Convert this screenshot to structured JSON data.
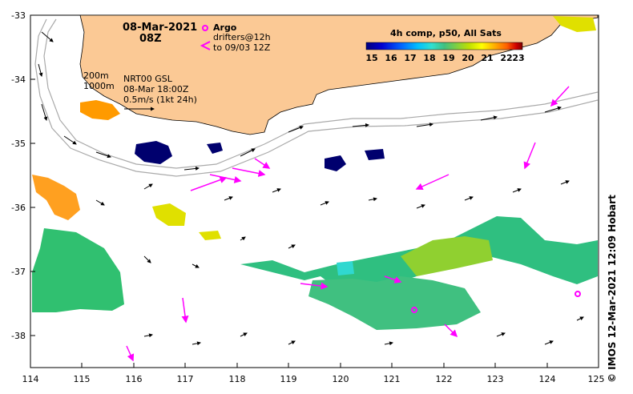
{
  "title": {
    "date": "08-Mar-2021",
    "time": "08Z"
  },
  "legend": {
    "argo_label": "Argo",
    "drifters_label": "drifters@12h",
    "drifters_to": "to 09/03 12Z",
    "argo_color": "#ff00ff",
    "drifter_color": "#ff00ff"
  },
  "depth_contours": {
    "label_200": "200m",
    "label_1000": "1000m",
    "contour_color": "#aaaaaa"
  },
  "currents": {
    "product": "NRT00 GSL",
    "valid": "08-Mar 18:00Z",
    "scale": "0.5m/s (1kt 24h)"
  },
  "colorbar": {
    "title": "4h comp, p50, All Sats",
    "ticks": [
      "15",
      "16",
      "17",
      "18",
      "19",
      "20",
      "21",
      "22",
      "23"
    ],
    "colors": [
      "#00007f",
      "#0000d0",
      "#0060ff",
      "#00bfff",
      "#30e0d0",
      "#40c080",
      "#80d040",
      "#c0e000",
      "#ffff00",
      "#ffb000",
      "#ff6000",
      "#d00000",
      "#7f0000"
    ]
  },
  "axes": {
    "x_ticks": [
      "114",
      "115",
      "116",
      "117",
      "118",
      "119",
      "120",
      "121",
      "122",
      "123",
      "124",
      "125"
    ],
    "y_ticks": [
      "-33",
      "-34",
      "-35",
      "-36",
      "-37",
      "-38"
    ]
  },
  "land_color": "#fbc995",
  "credit": "© IMOS 12-Mar-2021 12:09 Hobart",
  "map_data": {
    "lon_range": [
      114,
      125
    ],
    "lat_range": [
      -38.5,
      -33
    ]
  }
}
